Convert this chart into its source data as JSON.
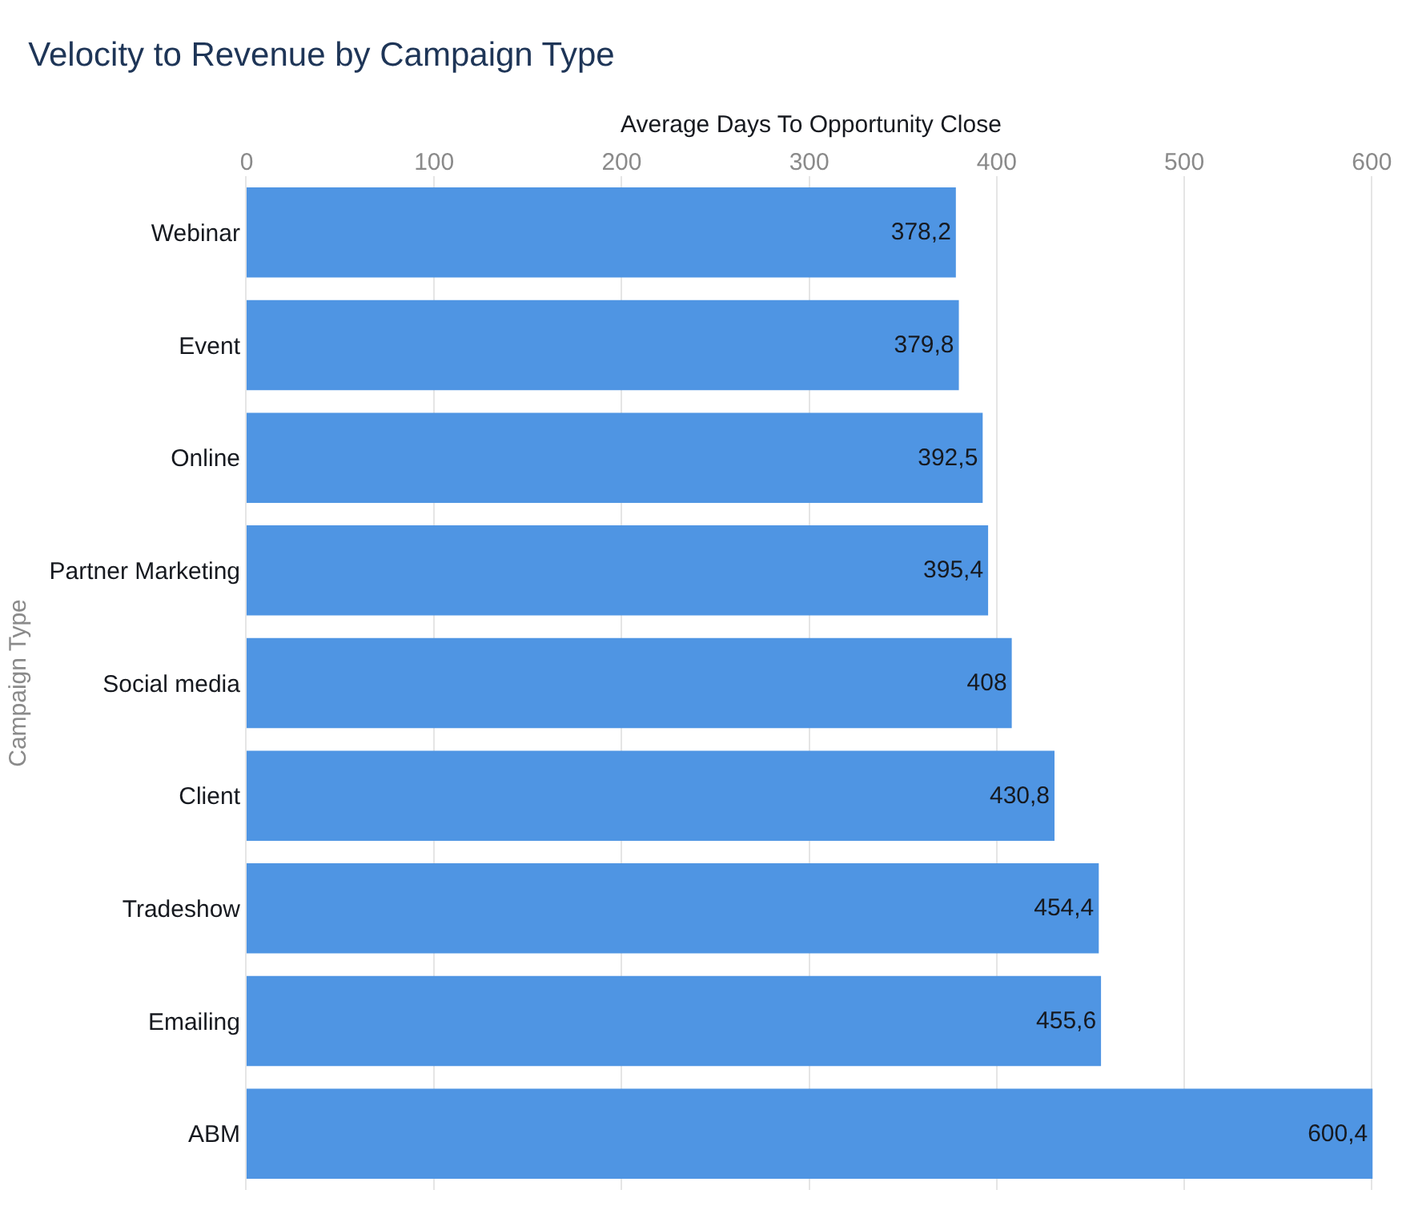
{
  "chart_data": {
    "type": "bar",
    "orientation": "horizontal",
    "title": "Velocity to Revenue by Campaign Type",
    "xlabel": "Average Days To Opportunity Close",
    "ylabel": "Campaign Type",
    "categories": [
      "Webinar",
      "Event",
      "Online",
      "Partner Marketing",
      "Social media",
      "Client",
      "Tradeshow",
      "Emailing",
      "ABM"
    ],
    "values": [
      378.2,
      379.8,
      392.5,
      395.4,
      408,
      430.8,
      454.4,
      455.6,
      600.4
    ],
    "value_labels": [
      "378,2",
      "379,8",
      "392,5",
      "395,4",
      "408",
      "430,8",
      "454,4",
      "455,6",
      "600,4"
    ],
    "color": "#4f95e3",
    "xlim": [
      0,
      602
    ],
    "xticks": [
      0,
      100,
      200,
      300,
      400,
      500,
      600
    ],
    "grid": "x"
  }
}
